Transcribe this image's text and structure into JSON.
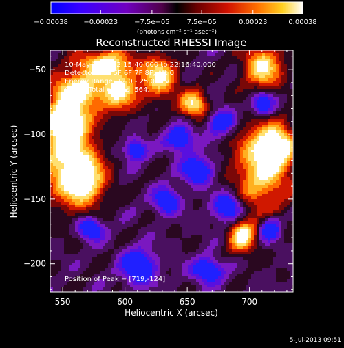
{
  "chart_data": {
    "type": "heatmap",
    "title": "Reconstructed RHESSI Image",
    "xlabel": "Heliocentric X (arcsec)",
    "ylabel": "Heliocentric Y (arcsec)",
    "xlim": [
      540,
      735
    ],
    "ylim": [
      -222,
      -35
    ],
    "x_ticks": [
      {
        "value": 550,
        "label": "550"
      },
      {
        "value": 600,
        "label": "600"
      },
      {
        "value": 650,
        "label": "650"
      },
      {
        "value": 700,
        "label": "700"
      }
    ],
    "y_ticks": [
      {
        "value": -50,
        "label": "−50"
      },
      {
        "value": -100,
        "label": "−100"
      },
      {
        "value": -150,
        "label": "−150"
      },
      {
        "value": -200,
        "label": "−200"
      }
    ],
    "colorbar": {
      "range": [
        -0.00038,
        0.00038
      ],
      "tick_values": [
        -0.00038,
        -0.00023,
        -7.5e-05,
        7.5e-05,
        0.00023,
        0.00038
      ],
      "tick_labels": [
        "−0.00038",
        "−0.00023",
        "−7.5e−05",
        "7.5e−05",
        "0.00023",
        "0.00038"
      ],
      "units": "(photons cm⁻² s⁻¹ asec⁻²)",
      "colors": [
        "#0000ff",
        "#6a00c8",
        "#6a0060",
        "#000000",
        "#800000",
        "#e02000",
        "#ff8a00",
        "#ffe040",
        "#ffffff"
      ]
    },
    "annotations": [
      "10-May-2005 22:15:40.000 to 22:16:40.000",
      "Detectors: 4F 5F 6F 7F 8F, Att 0",
      "Energy Range: 12.0 - 25.0 keV",
      "Clean.  Total counts: 564.",
      "Position of Peak = [719,-124]"
    ],
    "peak": {
      "x": 719,
      "y": -124
    },
    "grid": false,
    "legend": "none"
  },
  "footer": {
    "date": "5-Jul-2013 09:51"
  }
}
